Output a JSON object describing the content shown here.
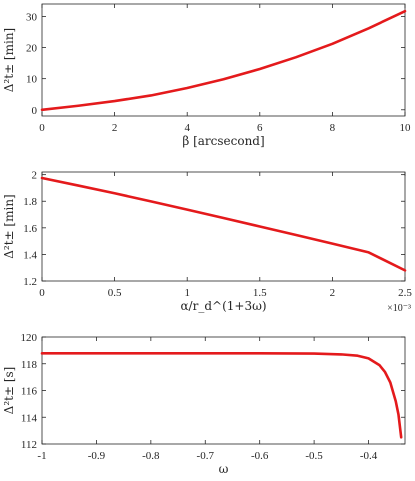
{
  "chart_data": [
    {
      "type": "line",
      "xlabel": "β [arcsecond]",
      "ylabel": "Δ²t± [min]",
      "xlim": [
        0,
        10
      ],
      "ylim": [
        -2,
        34
      ],
      "xticks": [
        0,
        2,
        4,
        6,
        8,
        10
      ],
      "yticks": [
        0,
        10,
        20,
        30
      ],
      "exponent_label": "",
      "grid": false,
      "series": [
        {
          "color": "#e41a1c",
          "x": [
            0,
            1,
            2,
            3,
            4,
            5,
            6,
            7,
            8,
            9,
            10
          ],
          "y": [
            0,
            1.3,
            2.8,
            4.6,
            7.0,
            9.8,
            13.1,
            16.9,
            21.2,
            26.2,
            31.7
          ]
        }
      ]
    },
    {
      "type": "line",
      "xlabel": "α/r_d^(1+3ω)",
      "ylabel": "Δ²t± [min]",
      "xlim": [
        0,
        0.0025
      ],
      "ylim": [
        1.2,
        2.02
      ],
      "xticks": [
        0,
        0.5,
        1,
        1.5,
        2,
        2.5
      ],
      "yticks": [
        1.2,
        1.4,
        1.6,
        1.8,
        2
      ],
      "exponent_label": "×10⁻³",
      "grid": false,
      "series": [
        {
          "color": "#e41a1c",
          "x": [
            0,
            0.00025,
            0.0005,
            0.00075,
            0.001,
            0.00125,
            0.0015,
            0.00175,
            0.002,
            0.00225,
            0.0025
          ],
          "y": [
            1.975,
            1.918,
            1.86,
            1.799,
            1.737,
            1.674,
            1.61,
            1.546,
            1.481,
            1.415,
            1.28
          ]
        }
      ]
    },
    {
      "type": "line",
      "xlabel": "ω",
      "ylabel": "Δ²t± [s]",
      "xlim": [
        -1,
        -0.333
      ],
      "ylim": [
        112,
        120
      ],
      "xticks": [
        -1,
        -0.9,
        -0.8,
        -0.7,
        -0.6,
        -0.5,
        -0.4
      ],
      "yticks": [
        112,
        114,
        116,
        118,
        120
      ],
      "exponent_label": "",
      "grid": false,
      "series": [
        {
          "color": "#e41a1c",
          "x": [
            -1,
            -0.9,
            -0.8,
            -0.7,
            -0.6,
            -0.5,
            -0.45,
            -0.42,
            -0.4,
            -0.38,
            -0.37,
            -0.36,
            -0.35,
            -0.345,
            -0.34
          ],
          "y": [
            118.78,
            118.78,
            118.78,
            118.78,
            118.78,
            118.76,
            118.7,
            118.6,
            118.4,
            117.9,
            117.4,
            116.6,
            115.2,
            114.2,
            112.5
          ]
        }
      ]
    }
  ]
}
